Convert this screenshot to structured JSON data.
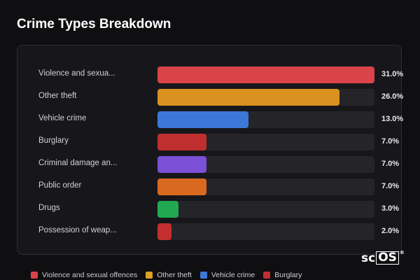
{
  "title": "Crime Types Breakdown",
  "chart_data": {
    "type": "bar",
    "orientation": "horizontal",
    "title": "Crime Types Breakdown",
    "categories": [
      "Violence and sexua...",
      "Other theft",
      "Vehicle crime",
      "Burglary",
      "Criminal damage an...",
      "Public order",
      "Drugs",
      "Possession of weap..."
    ],
    "values": [
      31.0,
      26.0,
      13.0,
      7.0,
      7.0,
      7.0,
      3.0,
      2.0
    ],
    "value_labels": [
      "31.0%",
      "26.0%",
      "13.0%",
      "7.0%",
      "7.0%",
      "7.0%",
      "3.0%",
      "2.0%"
    ],
    "colors": [
      "#d9434a",
      "#d9921f",
      "#3d78d8",
      "#c02f2f",
      "#7b4fd6",
      "#d9691f",
      "#22a850",
      "#c42f2f"
    ],
    "xlim": [
      0,
      31
    ],
    "unit": "%",
    "grid": false
  },
  "legend": [
    {
      "label": "Violence and sexual offences",
      "color": "#d9434a"
    },
    {
      "label": "Other theft",
      "color": "#e0a020"
    },
    {
      "label": "Vehicle crime",
      "color": "#3d78d8"
    },
    {
      "label": "Burglary",
      "color": "#c02f2f"
    }
  ],
  "logo": {
    "text_plain": "sc",
    "text_boxed": "OS",
    "mark": "®"
  }
}
